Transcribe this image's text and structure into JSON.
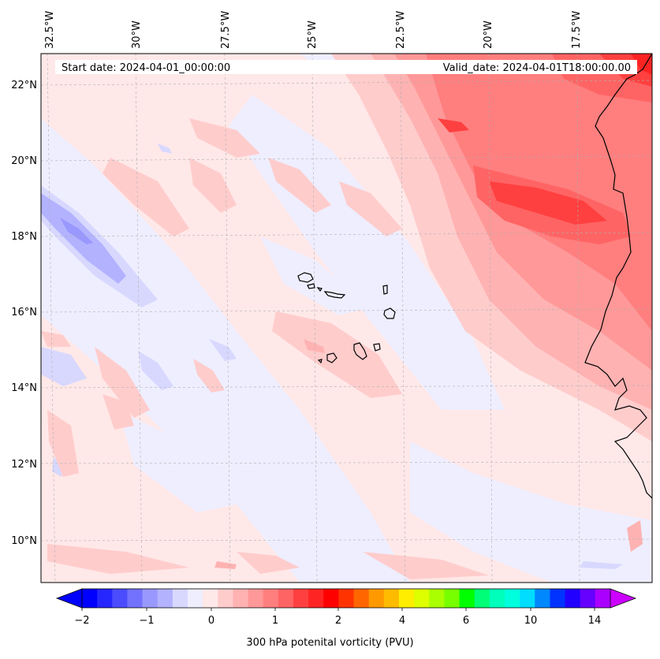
{
  "header": {
    "start_date": "Start date: 2024-04-01_00:00:00",
    "valid_date": "Valid_date: 2024-04-01T18:00:00.00"
  },
  "longitude_labels": [
    "32.5°W",
    "30°W",
    "27.5°W",
    "25°W",
    "22.5°W",
    "20°W",
    "17.5°W"
  ],
  "latitude_labels": [
    "22°N",
    "20°N",
    "18°N",
    "16°N",
    "14°N",
    "12°N",
    "10°N"
  ],
  "colorbar": {
    "title": "300 hPa potenital vorticity (PVU)",
    "tick_labels": [
      "−2",
      "−1",
      "0",
      "1",
      "2",
      "4",
      "6",
      "10",
      "14"
    ],
    "colors": [
      "#0000ff",
      "#2626ff",
      "#4c4cff",
      "#7272ff",
      "#9898ff",
      "#b2b2ff",
      "#d8d8ff",
      "#eeeeff",
      "#ffe8e8",
      "#ffcccc",
      "#ffb2b2",
      "#ff9898",
      "#ff7e7e",
      "#ff6464",
      "#ff4040",
      "#ff2424",
      "#ff0000",
      "#ff3300",
      "#ff6600",
      "#ff9900",
      "#ffbb00",
      "#ffee00",
      "#ddff00",
      "#aaff00",
      "#77ff00",
      "#00ff00",
      "#00ff77",
      "#00ffbb",
      "#00ffdd",
      "#00ddff",
      "#0088ff",
      "#0033ff",
      "#2200ff",
      "#6600ff",
      "#aa00ff"
    ],
    "extend_low_color": "#0000ff",
    "extend_high_color": "#cc00ff"
  },
  "colors": {
    "background": "#ffe8e8",
    "coast": "#000000"
  }
}
